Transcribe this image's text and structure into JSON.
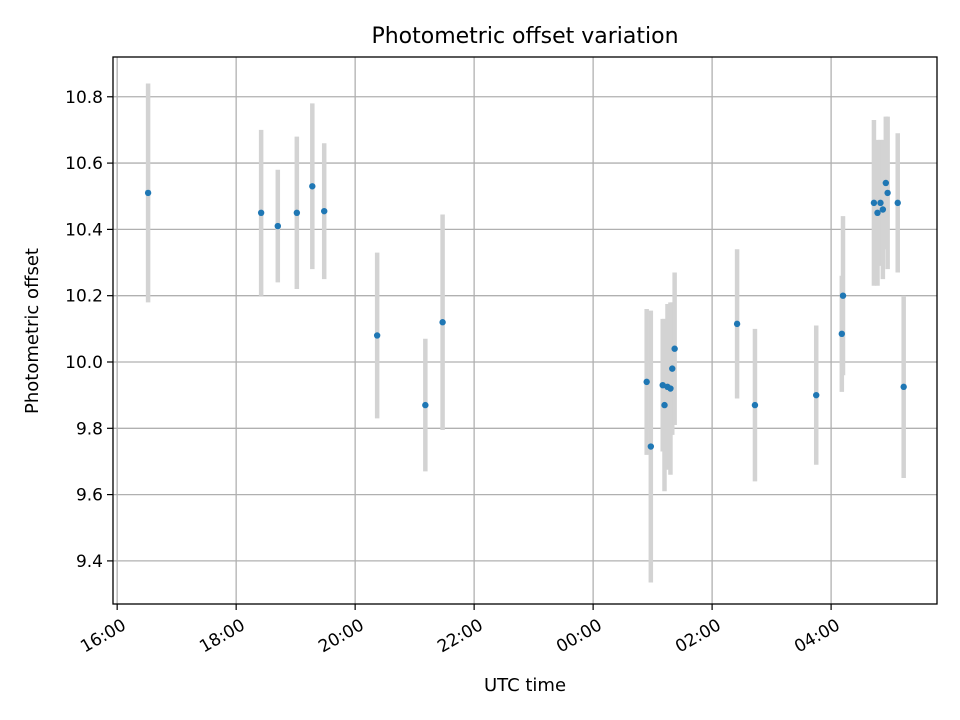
{
  "chart_data": {
    "type": "scatter",
    "title": "Photometric offset variation",
    "xlabel": "UTC time",
    "ylabel": "Photometric offset",
    "x_unit": "hours",
    "xlim": [
      15.93,
      29.78
    ],
    "ylim": [
      9.27,
      10.92
    ],
    "x_ticks": [
      {
        "value": 16,
        "label": "16:00"
      },
      {
        "value": 18,
        "label": "18:00"
      },
      {
        "value": 20,
        "label": "20:00"
      },
      {
        "value": 22,
        "label": "22:00"
      },
      {
        "value": 24,
        "label": "00:00"
      },
      {
        "value": 26,
        "label": "02:00"
      },
      {
        "value": 28,
        "label": "04:00"
      }
    ],
    "y_ticks": [
      {
        "value": 9.4,
        "label": "9.4"
      },
      {
        "value": 9.6,
        "label": "9.6"
      },
      {
        "value": 9.8,
        "label": "9.8"
      },
      {
        "value": 10.0,
        "label": "10.0"
      },
      {
        "value": 10.2,
        "label": "10.2"
      },
      {
        "value": 10.4,
        "label": "10.4"
      },
      {
        "value": 10.6,
        "label": "10.6"
      },
      {
        "value": 10.8,
        "label": "10.8"
      }
    ],
    "grid": true,
    "colors": {
      "points": "#1f77b4",
      "error_bars": "#d3d3d3"
    },
    "points": [
      {
        "x": 16.52,
        "y": 10.51,
        "err": 0.33
      },
      {
        "x": 18.42,
        "y": 10.45,
        "err": 0.25
      },
      {
        "x": 18.7,
        "y": 10.41,
        "err": 0.17
      },
      {
        "x": 19.02,
        "y": 10.45,
        "err": 0.23
      },
      {
        "x": 19.28,
        "y": 10.53,
        "err": 0.25
      },
      {
        "x": 19.48,
        "y": 10.455,
        "err": 0.205
      },
      {
        "x": 20.37,
        "y": 10.08,
        "err": 0.25
      },
      {
        "x": 21.18,
        "y": 9.87,
        "err": 0.2
      },
      {
        "x": 21.47,
        "y": 10.12,
        "err": 0.325
      },
      {
        "x": 24.9,
        "y": 9.94,
        "err": 0.22
      },
      {
        "x": 24.97,
        "y": 9.745,
        "err": 0.41
      },
      {
        "x": 25.17,
        "y": 9.93,
        "err": 0.2
      },
      {
        "x": 25.2,
        "y": 9.87,
        "err": 0.26
      },
      {
        "x": 25.25,
        "y": 9.925,
        "err": 0.25
      },
      {
        "x": 25.3,
        "y": 9.92,
        "err": 0.26
      },
      {
        "x": 25.33,
        "y": 9.98,
        "err": 0.2
      },
      {
        "x": 25.37,
        "y": 10.04,
        "err": 0.23
      },
      {
        "x": 26.42,
        "y": 10.115,
        "err": 0.225
      },
      {
        "x": 26.72,
        "y": 9.87,
        "err": 0.23
      },
      {
        "x": 27.75,
        "y": 9.9,
        "err": 0.21
      },
      {
        "x": 28.18,
        "y": 10.085,
        "err": 0.175
      },
      {
        "x": 28.2,
        "y": 10.2,
        "err": 0.24
      },
      {
        "x": 28.72,
        "y": 10.48,
        "err": 0.25
      },
      {
        "x": 28.78,
        "y": 10.45,
        "err": 0.22
      },
      {
        "x": 28.83,
        "y": 10.48,
        "err": 0.19
      },
      {
        "x": 28.87,
        "y": 10.46,
        "err": 0.21
      },
      {
        "x": 28.92,
        "y": 10.54,
        "err": 0.2
      },
      {
        "x": 28.95,
        "y": 10.51,
        "err": 0.23
      },
      {
        "x": 29.12,
        "y": 10.48,
        "err": 0.21
      },
      {
        "x": 29.22,
        "y": 9.925,
        "err": 0.275
      }
    ]
  }
}
